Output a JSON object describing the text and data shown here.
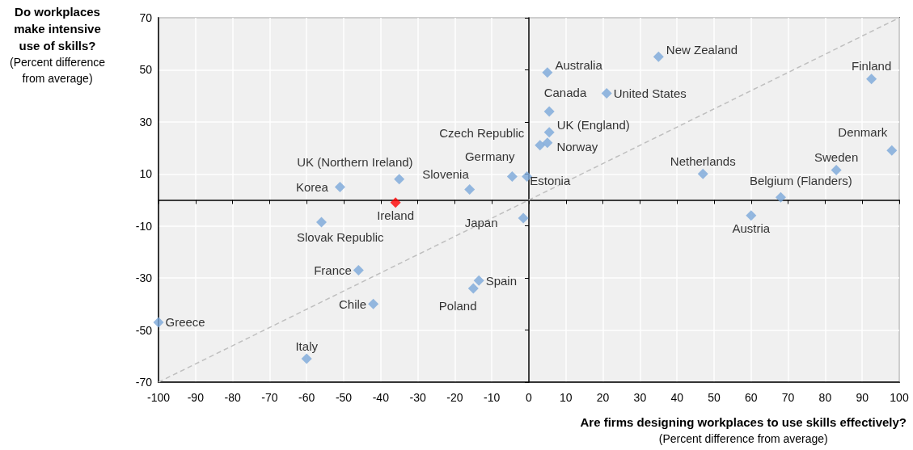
{
  "chart_data": {
    "type": "scatter",
    "xlabel": "Are firms designing workplaces to use skills effectively? (Percent difference from average)",
    "ylabel": "Do workplaces make intensive use of skills? (Percent difference from average)",
    "xlim": [
      -100,
      100
    ],
    "xticks": [
      -100,
      -90,
      -80,
      -70,
      -60,
      -50,
      -40,
      -30,
      -20,
      -10,
      0,
      10,
      20,
      30,
      40,
      50,
      60,
      70,
      80,
      90,
      100
    ],
    "ylim": [
      -70,
      70
    ],
    "yticks": [
      -70,
      -50,
      -30,
      -10,
      10,
      30,
      50,
      70
    ],
    "grid": true,
    "series": [
      {
        "marker": "diamond",
        "x": [
          -51,
          -35,
          -36,
          -16,
          -4.5,
          -0.5,
          3,
          5,
          5.5,
          5.5,
          5,
          21,
          35,
          92.5,
          98,
          83,
          47,
          68,
          60,
          -1.5,
          -56,
          -46,
          -13.5,
          -15,
          -42,
          -100,
          -60
        ],
        "values": [
          5,
          8,
          -1,
          4,
          9,
          9,
          21,
          22,
          26,
          34,
          49,
          41,
          55,
          46.5,
          19,
          11.5,
          10,
          1,
          -6,
          -7,
          -8.5,
          -27,
          -31,
          -34,
          -40,
          -47,
          -61
        ],
        "colors": [
          "#7ba7d9",
          "#7ba7d9",
          "#ff0000",
          "#7ba7d9",
          "#7ba7d9",
          "#7ba7d9",
          "#7ba7d9",
          "#7ba7d9",
          "#7ba7d9",
          "#7ba7d9",
          "#7ba7d9",
          "#7ba7d9",
          "#7ba7d9",
          "#7ba7d9",
          "#7ba7d9",
          "#7ba7d9",
          "#7ba7d9",
          "#7ba7d9",
          "#7ba7d9",
          "#7ba7d9",
          "#7ba7d9",
          "#7ba7d9",
          "#7ba7d9",
          "#7ba7d9",
          "#7ba7d9",
          "#7ba7d9",
          "#7ba7d9"
        ]
      },
      {
        "type": "line",
        "x": [
          -100,
          100
        ],
        "values": [
          -70,
          70
        ],
        "color": "#bfbfbf",
        "line_style": "dashed",
        "marker": "none"
      }
    ],
    "annotations": [
      {
        "text": "Korea",
        "x": -51,
        "y": 5
      },
      {
        "text": "UK (Northern Ireland)",
        "x": -35,
        "y": 8
      },
      {
        "text": "Ireland",
        "x": -36,
        "y": -1
      },
      {
        "text": "Slovenia",
        "x": -16,
        "y": 4
      },
      {
        "text": "Germany",
        "x": -4.5,
        "y": 9
      },
      {
        "text": "Estonia",
        "x": -0.5,
        "y": 9
      },
      {
        "text": "Czech Republic",
        "x": 3,
        "y": 21
      },
      {
        "text": "Norway",
        "x": 5,
        "y": 22
      },
      {
        "text": "UK (England)",
        "x": 5.5,
        "y": 26
      },
      {
        "text": "Canada",
        "x": 5.5,
        "y": 34
      },
      {
        "text": "Australia",
        "x": 5,
        "y": 49
      },
      {
        "text": "United States",
        "x": 21,
        "y": 41
      },
      {
        "text": "New Zealand",
        "x": 35,
        "y": 55
      },
      {
        "text": "Finland",
        "x": 92.5,
        "y": 46.5
      },
      {
        "text": "Denmark",
        "x": 98,
        "y": 19
      },
      {
        "text": "Sweden",
        "x": 83,
        "y": 11.5
      },
      {
        "text": "Netherlands",
        "x": 47,
        "y": 10
      },
      {
        "text": "Belgium (Flanders)",
        "x": 68,
        "y": 1
      },
      {
        "text": "Austria",
        "x": 60,
        "y": -6
      },
      {
        "text": "Japan",
        "x": -1.5,
        "y": -7
      },
      {
        "text": "Slovak Republic",
        "x": -56,
        "y": -8.5
      },
      {
        "text": "France",
        "x": -46,
        "y": -27
      },
      {
        "text": "Spain",
        "x": -13.5,
        "y": -31
      },
      {
        "text": "Poland",
        "x": -15,
        "y": -34
      },
      {
        "text": "Chile",
        "x": -42,
        "y": -40
      },
      {
        "text": "Greece",
        "x": -100,
        "y": -47
      },
      {
        "text": "Italy",
        "x": -60,
        "y": -61
      }
    ]
  }
}
